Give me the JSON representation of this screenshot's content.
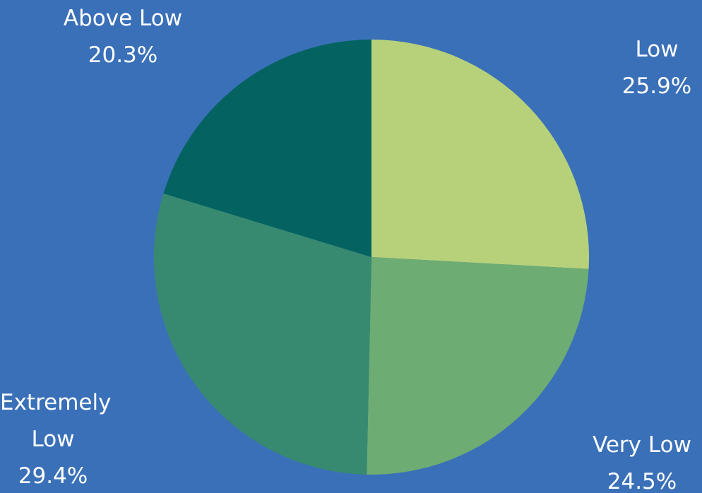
{
  "chart_data": {
    "type": "pie",
    "slices": [
      {
        "name_lines": [
          "Low"
        ],
        "value": 25.9,
        "label": "25.9%",
        "color": "#b7d17a"
      },
      {
        "name_lines": [
          "Very Low"
        ],
        "value": 24.5,
        "label": "24.5%",
        "color": "#6dac73"
      },
      {
        "name_lines": [
          "Extremely",
          "Low"
        ],
        "value": 29.4,
        "label": "29.4%",
        "color": "#378a70"
      },
      {
        "name_lines": [
          "Above Low"
        ],
        "value": 20.3,
        "label": "20.3%",
        "color": "#046360"
      }
    ],
    "background_color": "#3a70b8",
    "start_angle": "12 o'clock",
    "direction": "clockwise",
    "legend": "none"
  }
}
